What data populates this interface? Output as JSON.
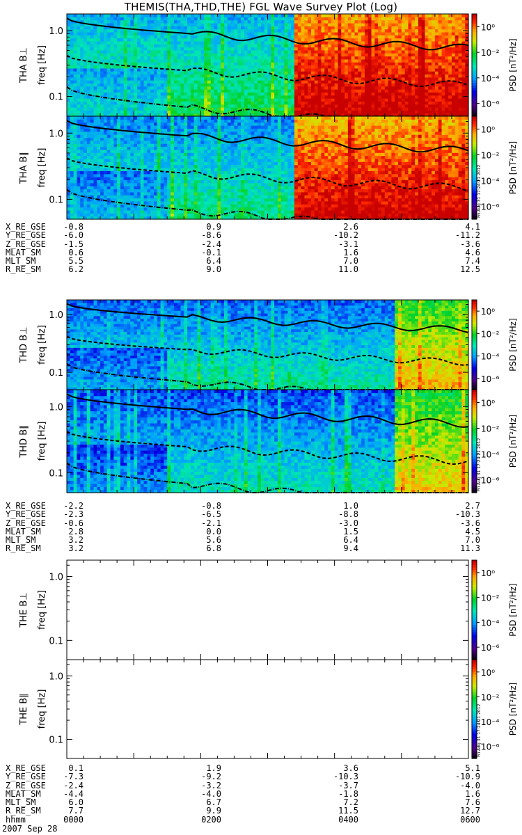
{
  "title": "THEMIS(THA,THD,THE) FGL Wave Survey Plot (Log)",
  "date_label": "2007 Sep 28",
  "stamp": "Fri Aug 31 17:24:21 2012",
  "colorbar": {
    "label": "PSD [nT²/Hz]",
    "ticks": [
      "10⁰",
      "10⁻²",
      "10⁻⁴",
      "10⁻⁶"
    ]
  },
  "freq_ticks": [
    "1.0",
    "0.1"
  ],
  "panels": [
    {
      "probe": "THA B⊥",
      "ylabel": "freq [Hz]",
      "has_data": true
    },
    {
      "probe": "THA B∥",
      "ylabel": "freq [Hz]",
      "has_data": true
    },
    {
      "probe": "THD B⊥",
      "ylabel": "freq [Hz]",
      "has_data": true
    },
    {
      "probe": "THD B∥",
      "ylabel": "freq [Hz]",
      "has_data": true
    },
    {
      "probe": "THE B⊥",
      "ylabel": "freq [Hz]",
      "has_data": false
    },
    {
      "probe": "THE B∥",
      "ylabel": "freq [Hz]",
      "has_data": false
    }
  ],
  "ephemeris": [
    {
      "probe": "THA",
      "rows": [
        {
          "label": "X_RE_GSE",
          "values": [
            "-0.8",
            "0.9",
            "2.6",
            "4.1"
          ]
        },
        {
          "label": "Y_RE_GSE",
          "values": [
            "-6.0",
            "-8.6",
            "-10.2",
            "-11.2"
          ]
        },
        {
          "label": "Z_RE_GSE",
          "values": [
            "-1.5",
            "-2.4",
            "-3.1",
            "-3.6"
          ]
        },
        {
          "label": "MLAT_SM",
          "values": [
            "0.6",
            "-0.1",
            "1.6",
            "4.6"
          ]
        },
        {
          "label": "MLT_SM",
          "values": [
            "5.5",
            "6.4",
            "7.0",
            "7.4"
          ]
        },
        {
          "label": "R_RE_SM",
          "values": [
            "6.2",
            "9.0",
            "11.0",
            "12.5"
          ]
        }
      ]
    },
    {
      "probe": "THD",
      "rows": [
        {
          "label": "X_RE_GSE",
          "values": [
            "-2.2",
            "-0.8",
            "1.0",
            "2.7"
          ]
        },
        {
          "label": "Y_RE_GSE",
          "values": [
            "-2.3",
            "-6.5",
            "-8.8",
            "-10.3"
          ]
        },
        {
          "label": "Z_RE_GSE",
          "values": [
            "-0.6",
            "-2.1",
            "-3.0",
            "-3.6"
          ]
        },
        {
          "label": "MLAT_SM",
          "values": [
            "2.8",
            "0.0",
            "1.5",
            "4.5"
          ]
        },
        {
          "label": "MLT_SM",
          "values": [
            "3.2",
            "5.6",
            "6.4",
            "7.0"
          ]
        },
        {
          "label": "R_RE_SM",
          "values": [
            "3.2",
            "6.8",
            "9.4",
            "11.3"
          ]
        }
      ]
    },
    {
      "probe": "THE",
      "rows": [
        {
          "label": "X_RE_GSE",
          "values": [
            "0.1",
            "1.9",
            "3.6",
            "5.1"
          ]
        },
        {
          "label": "Y_RE_GSE",
          "values": [
            "-7.3",
            "-9.2",
            "-10.3",
            "-10.9"
          ]
        },
        {
          "label": "Z_RE_GSE",
          "values": [
            "-2.4",
            "-3.2",
            "-3.7",
            "-4.0"
          ]
        },
        {
          "label": "MLAT_SM",
          "values": [
            "-4.4",
            "-4.0",
            "-1.8",
            "1.6"
          ]
        },
        {
          "label": "MLT_SM",
          "values": [
            "6.0",
            "6.7",
            "7.2",
            "7.6"
          ]
        },
        {
          "label": "R_RE_SM",
          "values": [
            "7.7",
            "9.9",
            "11.5",
            "12.7"
          ]
        },
        {
          "label": "hhmm",
          "values": [
            "0000",
            "0200",
            "0400",
            "0600"
          ]
        }
      ]
    }
  ],
  "chart_data": {
    "type": "heatmap",
    "title": "THEMIS(THA,THD,THE) FGL Wave Survey Plot (Log)",
    "ylabel": "freq [Hz]",
    "yscale": "log",
    "ylim": [
      0.05,
      1.8
    ],
    "yticks": [
      0.1,
      1.0
    ],
    "x_ticks": [
      "0000",
      "0200",
      "0400",
      "0600"
    ],
    "xlim": [
      "0000",
      "0600"
    ],
    "colorscale": "rainbow (black-blue-cyan-green-yellow-red)",
    "clim": [
      1e-07,
      10.0
    ],
    "clabel": "PSD [nT²/Hz]",
    "series": [
      {
        "name": "THA B⊥",
        "quiet_level": -3.0,
        "active_from_hour": 3.38,
        "active_level": 0.4
      },
      {
        "name": "THA B∥",
        "quiet_level": -3.4,
        "active_from_hour": 3.38,
        "active_level": 0.3
      },
      {
        "name": "THD B⊥",
        "quiet_level": -3.6,
        "active_from_hour": 4.9,
        "active_level": -1.2
      },
      {
        "name": "THD B∥",
        "quiet_level": -3.8,
        "active_from_hour": 4.9,
        "active_level": -1.4
      },
      {
        "name": "THE B⊥",
        "quiet_level": null
      },
      {
        "name": "THE B∥",
        "quiet_level": null
      }
    ]
  }
}
